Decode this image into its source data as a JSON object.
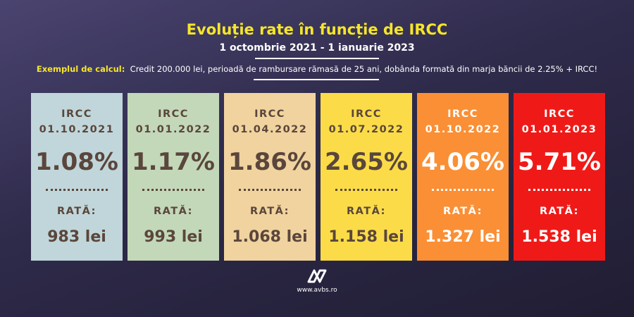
{
  "title": "Evoluție rate în funcție de IRCC",
  "period": "1 octombrie 2021 - 1 ianuarie 2023",
  "example": {
    "label": "Exemplul de calcul:",
    "text": "Credit 200.000 lei, perioadă de rambursare rămasă de 25 ani, dobânda formată din marja băncii de 2.25% + IRCC!"
  },
  "chart_data": {
    "type": "table",
    "title": "Evoluție rate în funcție de IRCC",
    "subtitle": "1 octombrie 2021 - 1 ianuarie 2023",
    "label_top": "IRCC",
    "label_bottom": "RATĂ:",
    "cards": [
      {
        "date": "01.10.2021",
        "ircc": "1.08%",
        "rata": "983 lei",
        "bg": "#c0d6da",
        "fg": "#5a463c"
      },
      {
        "date": "01.01.2022",
        "ircc": "1.17%",
        "rata": "993 lei",
        "bg": "#c3d8b8",
        "fg": "#5a463c"
      },
      {
        "date": "01.04.2022",
        "ircc": "1.86%",
        "rata": "1.068 lei",
        "bg": "#f0d39e",
        "fg": "#5a463c"
      },
      {
        "date": "01.07.2022",
        "ircc": "2.65%",
        "rata": "1.158 lei",
        "bg": "#fbdc48",
        "fg": "#5a463c"
      },
      {
        "date": "01.10.2022",
        "ircc": "4.06%",
        "rata": "1.327 lei",
        "bg": "#fa8f35",
        "fg": "#ffffff"
      },
      {
        "date": "01.01.2023",
        "ircc": "5.71%",
        "rata": "1.538 lei",
        "bg": "#ef1a18",
        "fg": "#ffffff"
      }
    ]
  },
  "logo_icon": "avbs-logo-icon",
  "website": "www.avbs.ro"
}
